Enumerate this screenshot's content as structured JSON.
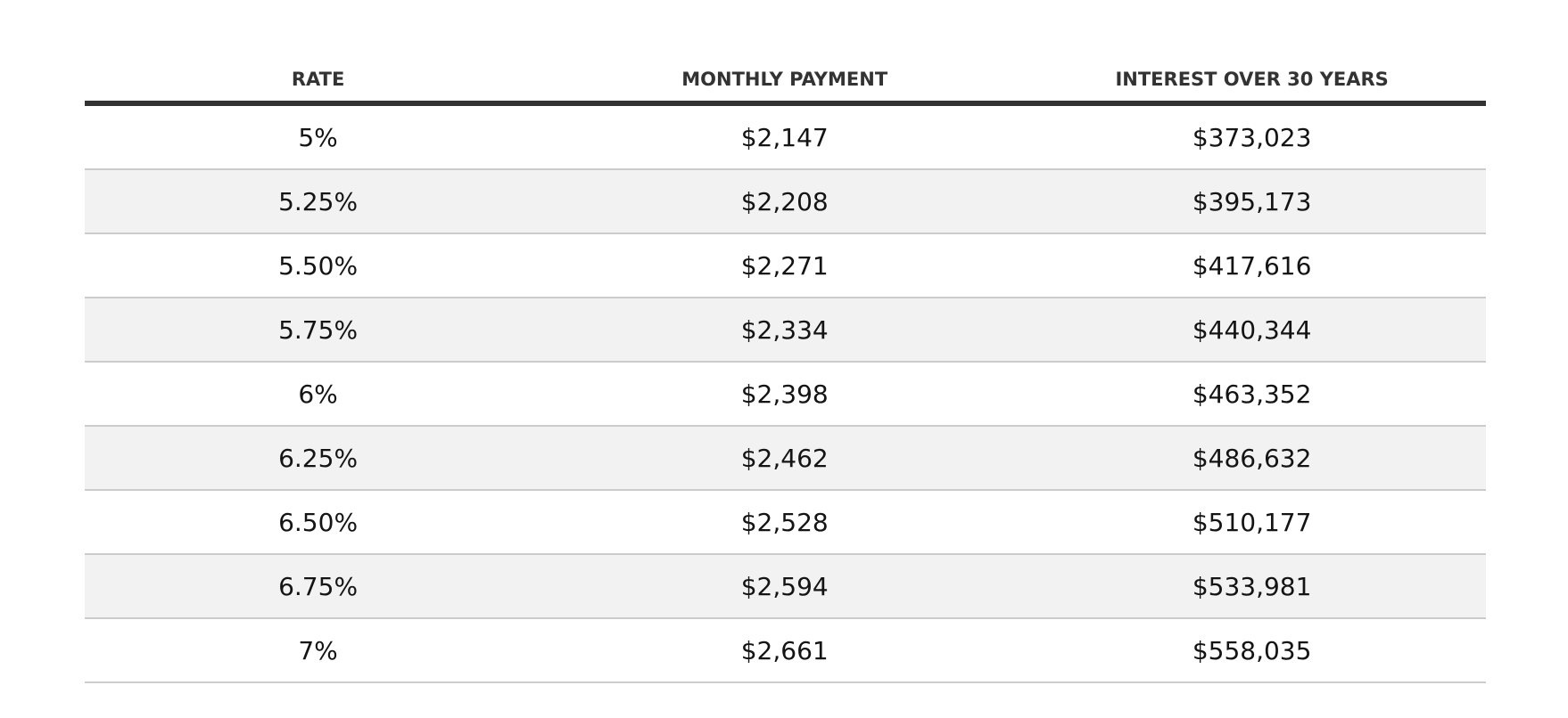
{
  "table": {
    "headers": [
      "RATE",
      "MONTHLY PAYMENT",
      "INTEREST OVER 30 YEARS"
    ],
    "rows": [
      [
        "5%",
        "$2,147",
        "$373,023"
      ],
      [
        "5.25%",
        "$2,208",
        "$395,173"
      ],
      [
        "5.50%",
        "$2,271",
        "$417,616"
      ],
      [
        "5.75%",
        "$2,334",
        "$440,344"
      ],
      [
        "6%",
        "$2,398",
        "$463,352"
      ],
      [
        "6.25%",
        "$2,462",
        "$486,632"
      ],
      [
        "6.50%",
        "$2,528",
        "$510,177"
      ],
      [
        "6.75%",
        "$2,594",
        "$533,981"
      ],
      [
        "7%",
        "$2,661",
        "$558,035"
      ]
    ]
  },
  "colors": {
    "header_text": "#333333",
    "header_rule": "#333333",
    "row_divider": "#cccccc",
    "alt_row_bg": "#f2f2f2",
    "body_text": "#141414"
  }
}
